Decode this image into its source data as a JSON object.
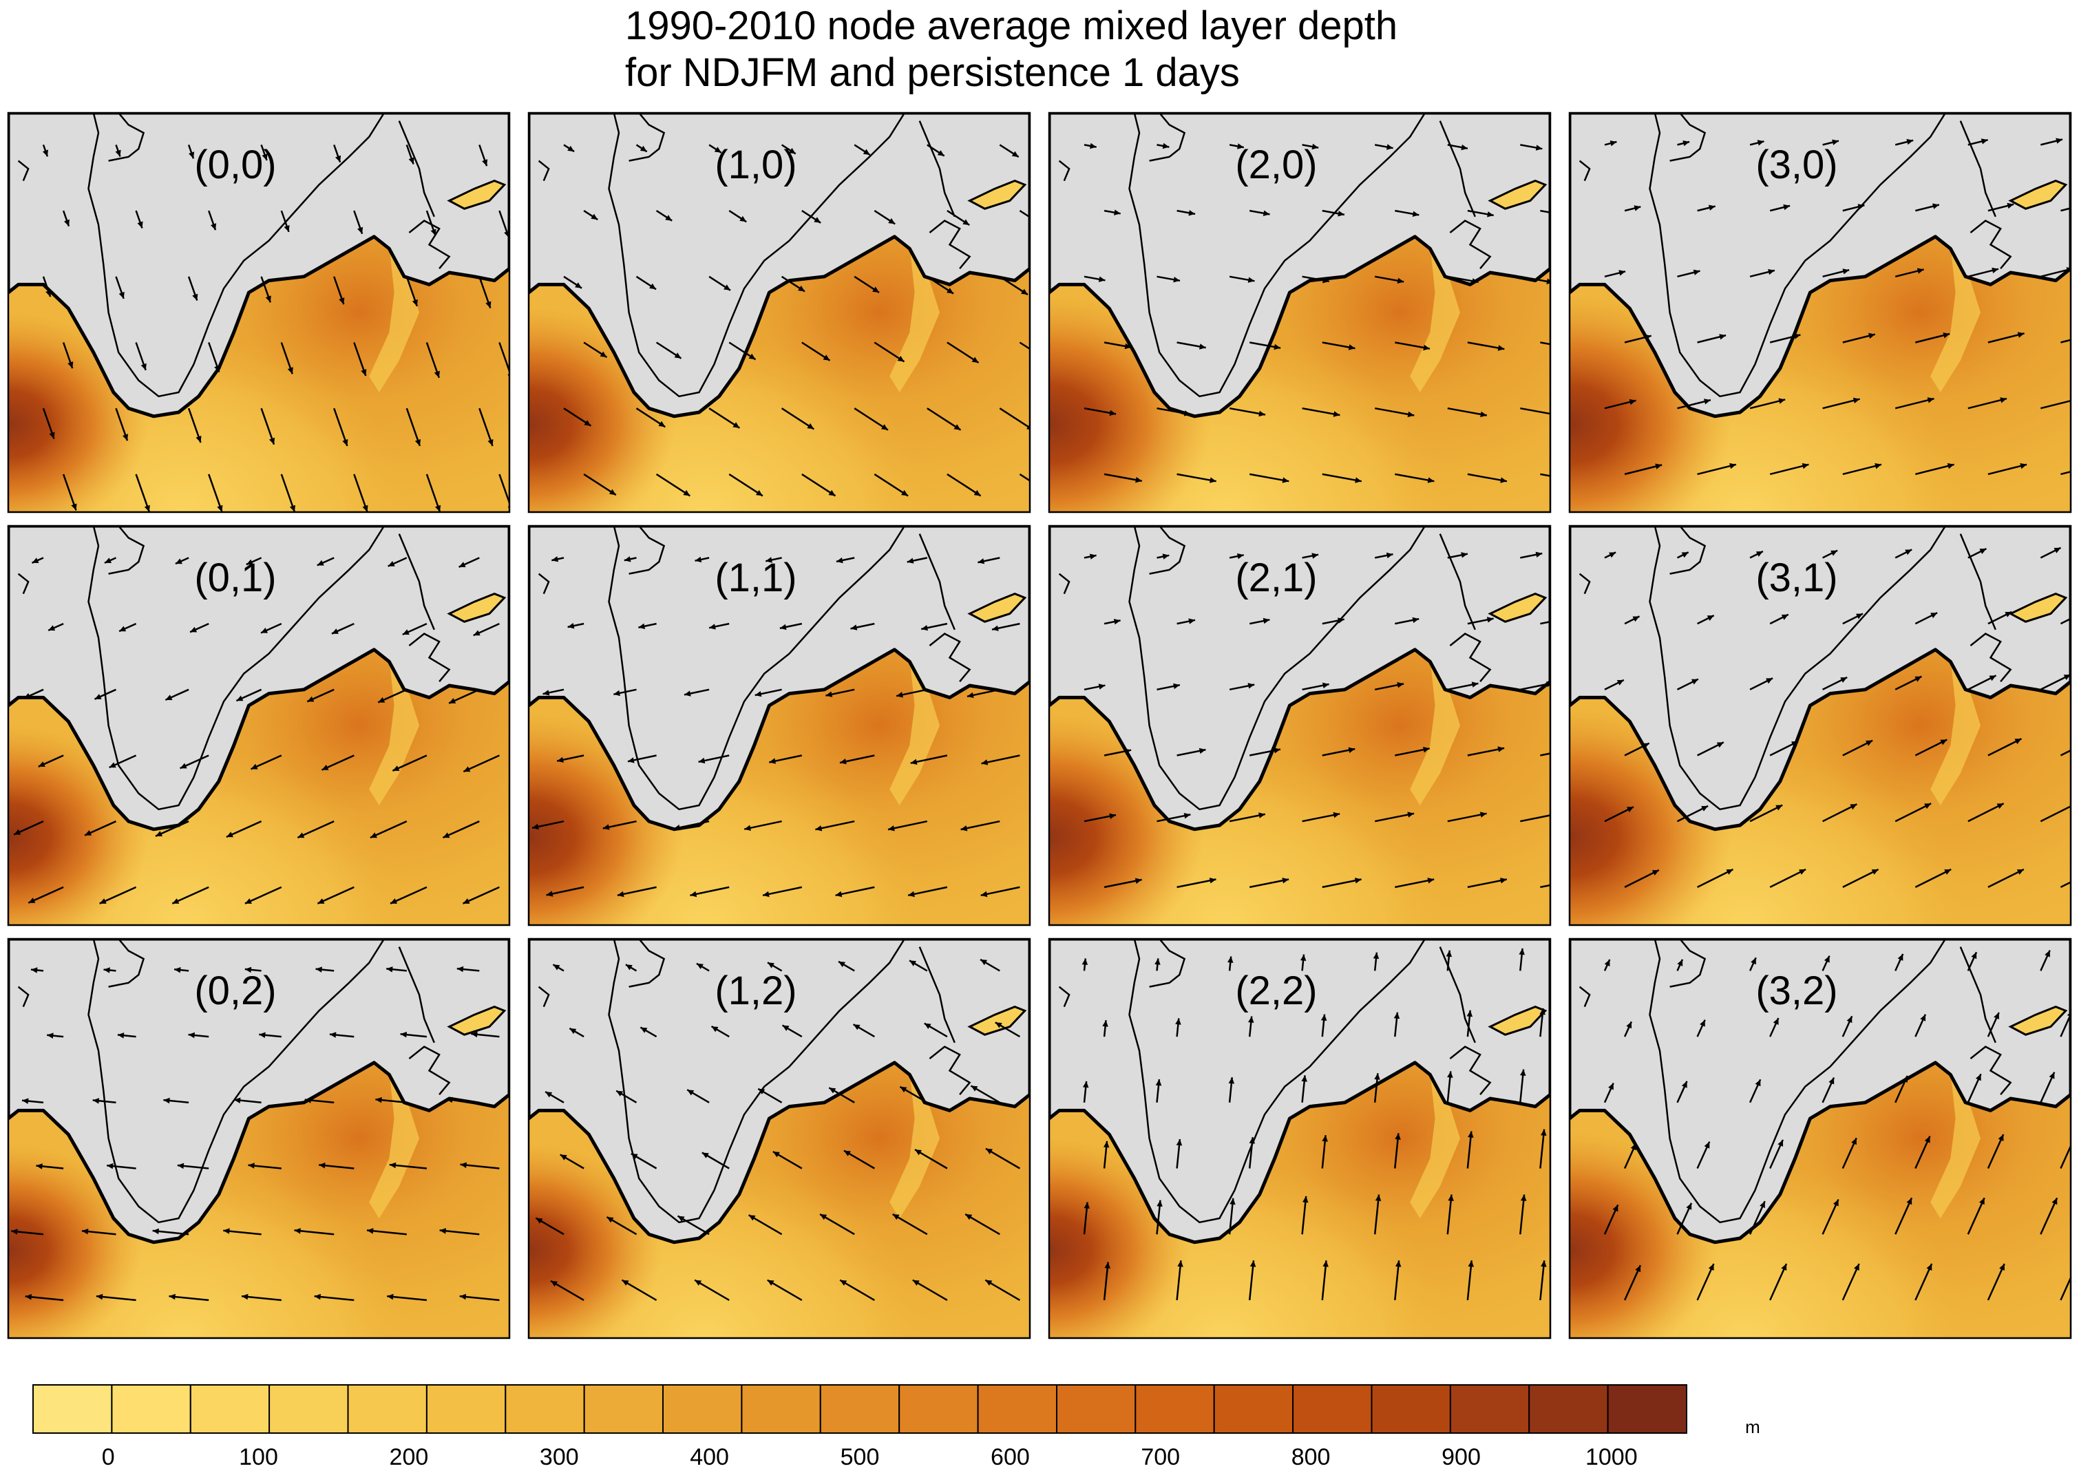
{
  "title": {
    "line1": "1990-2010 node average mixed layer depth",
    "line2": "for NDJFM and persistence 1 days"
  },
  "colors": {
    "land": "#dcdcdc",
    "frame": "#000000",
    "scale": [
      "#fde47c",
      "#fdde6e",
      "#fbd762",
      "#f9d057",
      "#f6c84e",
      "#f3bf45",
      "#efb53c",
      "#ebab36",
      "#e8a130",
      "#e5972b",
      "#e28d27",
      "#df8323",
      "#dc791f",
      "#d86f1b",
      "#d26516",
      "#c95a12",
      "#bf5011",
      "#b24611",
      "#a33d14",
      "#923515",
      "#7d2b17"
    ]
  },
  "chart_data": {
    "type": "heatmap",
    "title": "1990-2010 node average mixed layer depth for NDJFM and persistence 1 days",
    "panels": [
      {
        "label": "(0,0)",
        "col": 0,
        "row": 0,
        "wind": [
          0.35,
          -1.0
        ],
        "hot": 1.0
      },
      {
        "label": "(1,0)",
        "col": 1,
        "row": 0,
        "wind": [
          0.85,
          -0.55
        ],
        "hot": 1.05
      },
      {
        "label": "(2,0)",
        "col": 2,
        "row": 0,
        "wind": [
          1.0,
          -0.18
        ],
        "hot": 1.15
      },
      {
        "label": "(3,0)",
        "col": 3,
        "row": 0,
        "wind": [
          1.0,
          0.25
        ],
        "hot": 1.15
      },
      {
        "label": "(0,1)",
        "col": 0,
        "row": 1,
        "wind": [
          -1.0,
          -0.45
        ],
        "hot": 1.0
      },
      {
        "label": "(1,1)",
        "col": 1,
        "row": 1,
        "wind": [
          -0.95,
          -0.2
        ],
        "hot": 1.1
      },
      {
        "label": "(2,1)",
        "col": 2,
        "row": 1,
        "wind": [
          1.0,
          0.2
        ],
        "hot": 1.1
      },
      {
        "label": "(3,1)",
        "col": 3,
        "row": 1,
        "wind": [
          1.0,
          0.5
        ],
        "hot": 1.15
      },
      {
        "label": "(0,2)",
        "col": 0,
        "row": 2,
        "wind": [
          -1.0,
          0.1
        ],
        "hot": 0.95
      },
      {
        "label": "(1,2)",
        "col": 1,
        "row": 2,
        "wind": [
          -0.6,
          0.35
        ],
        "hot": 0.95
      },
      {
        "label": "(2,2)",
        "col": 2,
        "row": 2,
        "wind": [
          0.1,
          1.0
        ],
        "hot": 1.0
      },
      {
        "label": "(3,2)",
        "col": 3,
        "row": 2,
        "wind": [
          0.45,
          1.0
        ],
        "hot": 1.05
      }
    ],
    "colorbar": {
      "unit": "m",
      "ticks": [
        "0",
        "100",
        "200",
        "300",
        "400",
        "500",
        "600",
        "700",
        "800",
        "900",
        "1000"
      ],
      "range": [
        -50,
        1050
      ],
      "step": 50
    }
  }
}
